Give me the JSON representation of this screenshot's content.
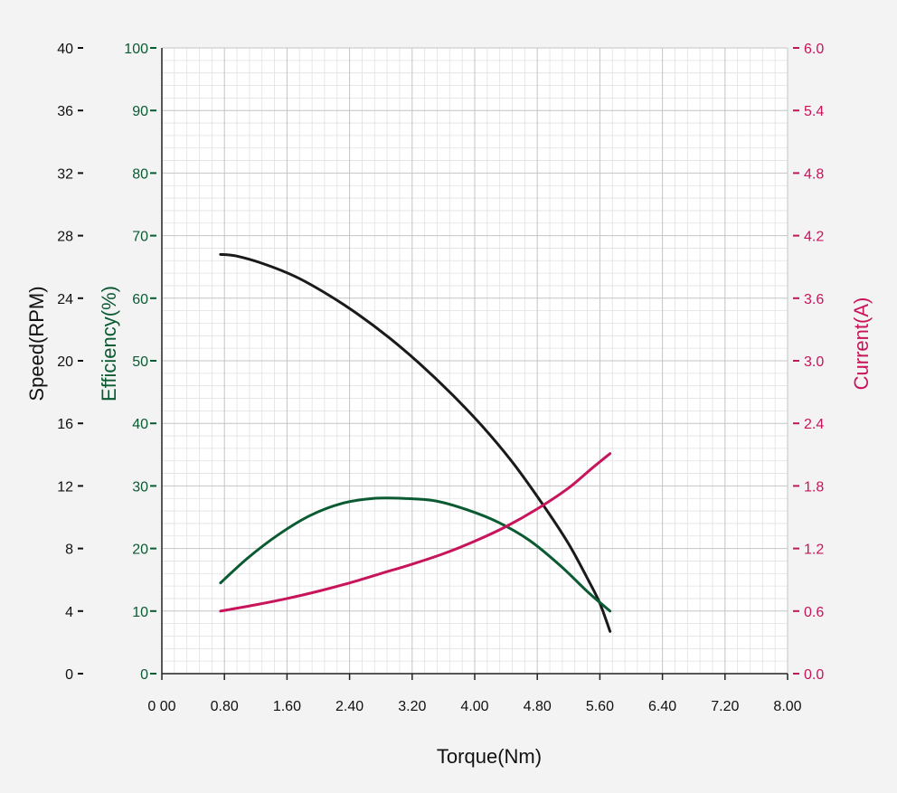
{
  "chart_data": {
    "type": "line",
    "title": "",
    "xlabel": "Torque(Nm)",
    "xlim": [
      0,
      8
    ],
    "x_tick_labels": [
      "0 00",
      "0.80",
      "1.60",
      "2.40",
      "3.20",
      "4.00",
      "4.80",
      "5.60",
      "6.40",
      "7.20",
      "8.00"
    ],
    "y_axes": [
      {
        "label": "Speed(RPM)",
        "side": "left-outer",
        "color": "#111111",
        "lim": [
          0,
          40
        ],
        "tick_labels": [
          "0",
          "4",
          "8",
          "12",
          "16",
          "20",
          "24",
          "28",
          "32",
          "36",
          "40"
        ]
      },
      {
        "label": "Efficiency(%)",
        "side": "left-inner",
        "color": "#0a5a32",
        "lim": [
          0,
          100
        ],
        "tick_labels": [
          "0",
          "10",
          "20",
          "30",
          "40",
          "50",
          "60",
          "70",
          "80",
          "90",
          "100"
        ]
      },
      {
        "label": "Current(A)",
        "side": "right",
        "color": "#c8145a",
        "lim": [
          0,
          6
        ],
        "tick_labels": [
          "0.0",
          "0.6",
          "1.2",
          "1.8",
          "2.4",
          "3.0",
          "3.6",
          "4.2",
          "4.8",
          "5.4",
          "6.0"
        ]
      }
    ],
    "grid": true,
    "series": [
      {
        "axis": "Speed(RPM)",
        "color": "#1a1a1a",
        "x": [
          0.75,
          0.95,
          1.3,
          1.7,
          2.1,
          2.5,
          2.9,
          3.3,
          3.7,
          4.1,
          4.5,
          4.9,
          5.2,
          5.45,
          5.6,
          5.73
        ],
        "values": [
          26.8,
          26.7,
          26.2,
          25.4,
          24.3,
          23.0,
          21.5,
          19.8,
          17.9,
          15.8,
          13.4,
          10.6,
          8.3,
          6.0,
          4.5,
          2.7
        ]
      },
      {
        "axis": "Efficiency(%)",
        "color": "#0a5a32",
        "x": [
          0.75,
          1.1,
          1.5,
          1.9,
          2.3,
          2.7,
          3.1,
          3.5,
          3.9,
          4.3,
          4.7,
          5.1,
          5.45,
          5.73
        ],
        "values": [
          14.5,
          18.5,
          22.3,
          25.3,
          27.2,
          28.0,
          28.0,
          27.6,
          26.2,
          24.2,
          21.3,
          17.2,
          13.0,
          10.0
        ]
      },
      {
        "axis": "Current(A)",
        "color": "#c8145a",
        "x": [
          0.75,
          1.2,
          1.6,
          2.0,
          2.4,
          2.8,
          3.2,
          3.6,
          4.0,
          4.4,
          4.8,
          5.2,
          5.5,
          5.73
        ],
        "values": [
          0.6,
          0.66,
          0.72,
          0.79,
          0.87,
          0.96,
          1.05,
          1.15,
          1.27,
          1.41,
          1.58,
          1.78,
          1.97,
          2.11
        ]
      }
    ]
  }
}
